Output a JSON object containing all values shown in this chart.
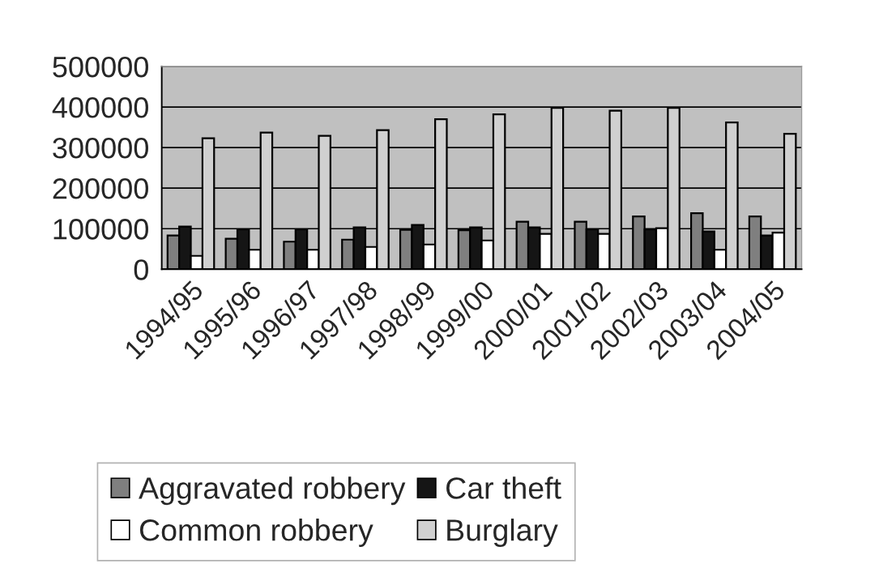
{
  "chart_data": {
    "type": "bar",
    "categories": [
      "1994/95",
      "1995/96",
      "1996/97",
      "1997/98",
      "1998/99",
      "1999/00",
      "2000/01",
      "2001/02",
      "2002/03",
      "2003/04",
      "2004/05"
    ],
    "series": [
      {
        "name": "Aggravated robbery",
        "color": "#7f7f7f",
        "values": [
          83000,
          75000,
          68000,
          73000,
          97000,
          96000,
          117000,
          117000,
          130000,
          138000,
          130000
        ]
      },
      {
        "name": "Car theft",
        "color": "#151515",
        "values": [
          105000,
          98000,
          98000,
          103000,
          109000,
          103000,
          103000,
          98000,
          98000,
          93000,
          83000
        ]
      },
      {
        "name": "Common robbery",
        "color": "#ffffff",
        "values": [
          33000,
          48000,
          48000,
          55000,
          61000,
          71000,
          87000,
          87000,
          101000,
          48000,
          90000
        ]
      },
      {
        "name": "Burglary",
        "color": "#d0d0d0",
        "values": [
          323000,
          337000,
          329000,
          343000,
          370000,
          382000,
          398000,
          391000,
          398000,
          362000,
          334000
        ]
      }
    ],
    "ylim": [
      0,
      500000
    ],
    "yticks": [
      0,
      100000,
      200000,
      300000,
      400000,
      500000
    ],
    "grid": "y",
    "legend": "bottom"
  }
}
